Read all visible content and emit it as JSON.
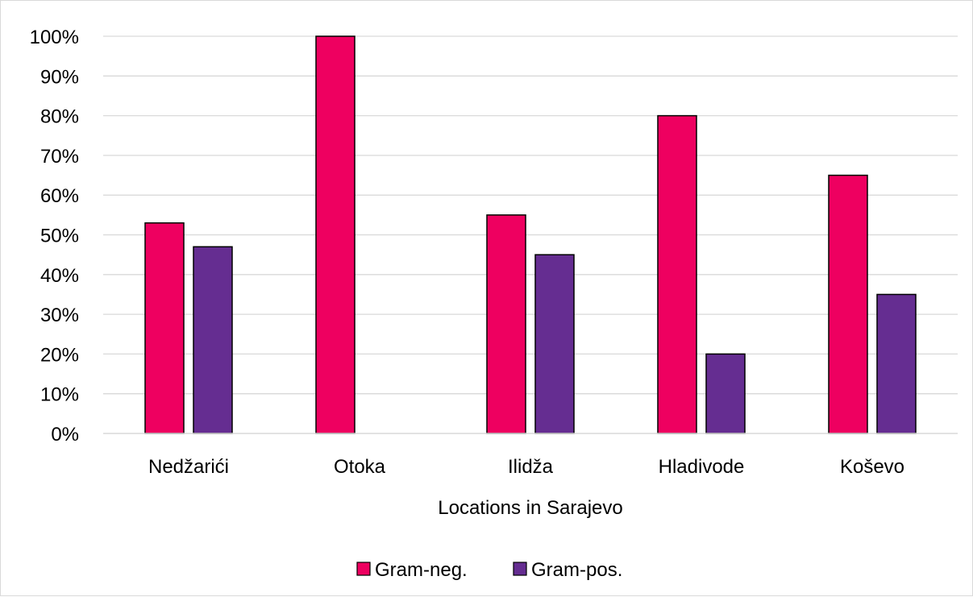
{
  "chart_data": {
    "type": "bar",
    "categories": [
      "Nedžarići",
      "Otoka",
      "Ilidža",
      "Hladivode",
      "Koševo"
    ],
    "series": [
      {
        "name": "Gram-neg.",
        "values": [
          53,
          100,
          55,
          80,
          65
        ],
        "color": "#ee0060"
      },
      {
        "name": "Gram-pos.",
        "values": [
          47,
          0,
          45,
          20,
          35
        ],
        "color": "#652d91"
      }
    ],
    "xlabel": "Locations in Sarajevo",
    "ylabel": "",
    "ylim": [
      0,
      100
    ],
    "yticks": [
      "0%",
      "10%",
      "20%",
      "30%",
      "40%",
      "50%",
      "60%",
      "70%",
      "80%",
      "90%",
      "100%"
    ],
    "grid": true,
    "legend_position": "bottom"
  }
}
